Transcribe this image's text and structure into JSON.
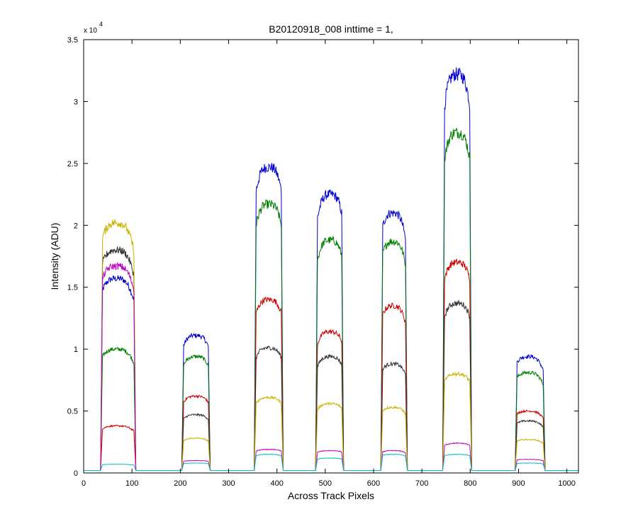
{
  "chart_data": {
    "type": "line",
    "title": "B20120918_008 inttime = 1,",
    "xlabel": "Across Track Pixels",
    "ylabel": "Intensity (ADU)",
    "xlim": [
      0,
      1024
    ],
    "ylim": [
      0,
      35000
    ],
    "y_multiplier_base": "x 10",
    "y_multiplier_exp": "4",
    "grid": false,
    "legend": "none",
    "x_ticks": [
      0,
      100,
      200,
      300,
      400,
      500,
      600,
      700,
      800,
      900,
      1000
    ],
    "y_ticks": [
      0,
      0.5,
      1,
      1.5,
      2,
      2.5,
      3,
      3.5
    ],
    "y_tick_labels": [
      "0",
      "0.5",
      "1",
      "1.5",
      "2",
      "2.5",
      "3",
      "3.5"
    ],
    "baseline": 200,
    "pulses": [
      {
        "start": 35,
        "end": 108,
        "peak_x": 68
      },
      {
        "start": 203,
        "end": 262,
        "peak_x": 232
      },
      {
        "start": 353,
        "end": 413,
        "peak_x": 383
      },
      {
        "start": 480,
        "end": 538,
        "peak_x": 510
      },
      {
        "start": 615,
        "end": 670,
        "peak_x": 640
      },
      {
        "start": 743,
        "end": 803,
        "peak_x": 773
      },
      {
        "start": 893,
        "end": 955,
        "peak_x": 920
      }
    ],
    "series": [
      {
        "color": "#0000cc",
        "levels": [
          15500,
          10900,
          24500,
          22300,
          20800,
          32000,
          9200
        ]
      },
      {
        "color": "#007f00",
        "levels": [
          9800,
          9200,
          21500,
          18600,
          18500,
          27300,
          7900
        ]
      },
      {
        "color": "#cc0000",
        "levels": [
          3600,
          6000,
          13800,
          11200,
          13300,
          16800,
          4800
        ]
      },
      {
        "color": "#333333",
        "levels": [
          17800,
          4500,
          9900,
          9200,
          8600,
          13500,
          4000
        ]
      },
      {
        "color": "#c8b400",
        "levels": [
          20000,
          2600,
          5900,
          5400,
          5100,
          7800,
          2500
        ]
      },
      {
        "color": "#bf00bf",
        "levels": [
          16500,
          800,
          1700,
          1600,
          1600,
          2200,
          900
        ]
      },
      {
        "color": "#00c0c0",
        "levels": [
          500,
          600,
          1300,
          1000,
          1300,
          1300,
          600
        ]
      }
    ]
  }
}
